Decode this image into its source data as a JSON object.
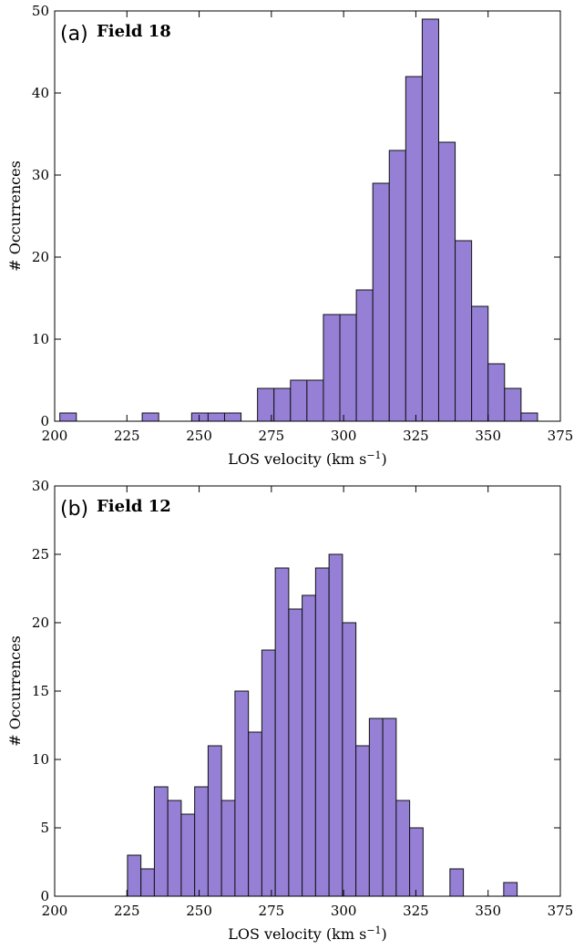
{
  "colors": {
    "bar_fill": "#9580d6",
    "bar_edge": "#111111",
    "axes": "#000000"
  },
  "chart_data": [
    {
      "type": "bar",
      "panel_tag": "(a)",
      "title": "Field 18",
      "xlabel": "LOS velocity (km s",
      "xlabel_sup": "−1",
      "xlabel_close": ")",
      "ylabel": "# Occurrences",
      "xlim": [
        200,
        375
      ],
      "ylim": [
        0,
        50
      ],
      "xticks": [
        200,
        225,
        250,
        275,
        300,
        325,
        350,
        375
      ],
      "yticks": [
        0,
        10,
        20,
        30,
        40,
        50
      ],
      "bin_width": 5.7,
      "bin_starts": [
        201.8,
        207.5,
        213.2,
        218.9,
        224.6,
        230.3,
        236.0,
        241.7,
        247.4,
        253.1,
        258.8,
        264.5,
        270.2,
        275.9,
        281.6,
        287.3,
        293.0,
        298.7,
        304.4,
        310.1,
        315.8,
        321.5,
        327.2,
        332.9,
        338.6,
        344.3,
        350.0,
        355.7,
        361.4,
        367.1
      ],
      "values": [
        1,
        0,
        0,
        0,
        0,
        1,
        0,
        0,
        1,
        1,
        1,
        0,
        4,
        4,
        5,
        5,
        13,
        13,
        16,
        29,
        33,
        42,
        49,
        34,
        22,
        14,
        7,
        4,
        1,
        0
      ]
    },
    {
      "type": "bar",
      "panel_tag": "(b)",
      "title": "Field 12",
      "xlabel": "LOS velocity (km s",
      "xlabel_sup": "−1",
      "xlabel_close": ")",
      "ylabel": "# Occurrences",
      "xlim": [
        200,
        375
      ],
      "ylim": [
        0,
        30
      ],
      "xticks": [
        200,
        225,
        250,
        275,
        300,
        325,
        350,
        375
      ],
      "yticks": [
        0,
        5,
        10,
        15,
        20,
        25,
        30
      ],
      "bin_width": 4.65,
      "bin_starts": [
        225.2,
        229.85,
        234.5,
        239.15,
        243.8,
        248.45,
        253.1,
        257.75,
        262.4,
        267.05,
        271.7,
        276.35,
        281.0,
        285.65,
        290.3,
        294.95,
        299.6,
        304.25,
        308.9,
        313.55,
        318.2,
        322.85,
        327.5,
        332.15,
        336.8,
        341.45,
        346.1,
        350.75,
        355.4,
        360.05
      ],
      "values": [
        3,
        2,
        8,
        7,
        6,
        8,
        11,
        7,
        15,
        12,
        18,
        24,
        21,
        22,
        24,
        25,
        20,
        11,
        13,
        13,
        7,
        5,
        0,
        0,
        2,
        0,
        0,
        0,
        1,
        0
      ]
    }
  ]
}
